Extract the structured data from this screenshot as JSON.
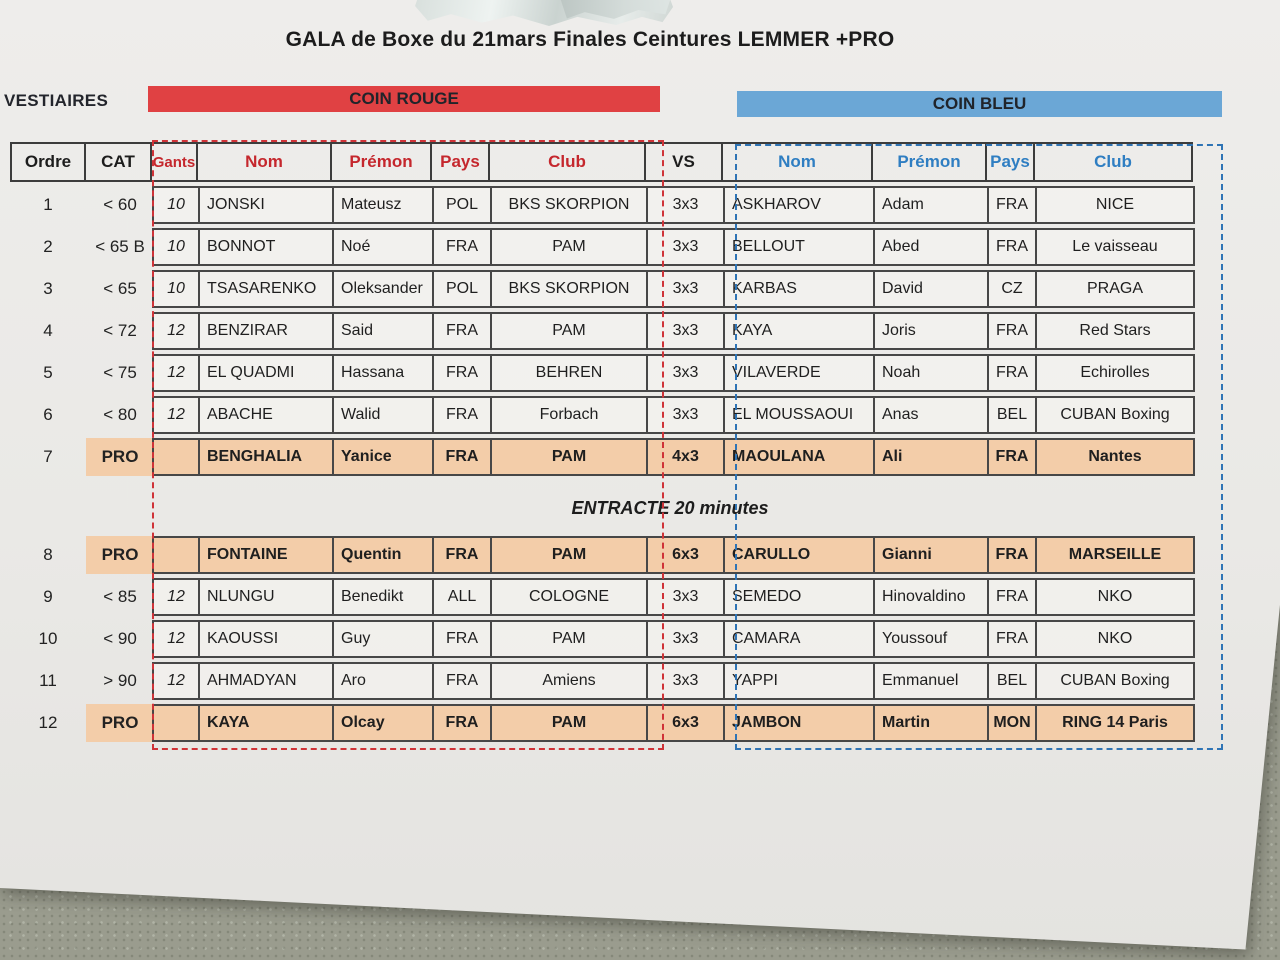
{
  "title": "GALA de Boxe du 21mars Finales Ceintures LEMMER +PRO",
  "vestiaires_label": "VESTIAIRES",
  "banners": {
    "red_label": "COIN ROUGE",
    "blue_label": "COIN BLEU"
  },
  "colors": {
    "red_banner": "#e04143",
    "blue_banner": "#6ba7d6",
    "red_text": "#c5272d",
    "blue_text": "#2f7ec2",
    "pro_highlight": "#f3cda9"
  },
  "table": {
    "headers": {
      "ordre": "Ordre",
      "cat": "CAT",
      "gants": "Gants",
      "nom": "Nom",
      "premon": "Prémon",
      "pays": "Pays",
      "club": "Club",
      "vs": "VS"
    },
    "entracte_label": "ENTRACTE 20 minutes",
    "rows": [
      {
        "ordre": "1",
        "cat": "< 60",
        "gants": "10",
        "pro": false,
        "red": {
          "nom": "JONSKI",
          "premon": "Mateusz",
          "pays": "POL",
          "club": "BKS SKORPION"
        },
        "vs": "3x3",
        "blue": {
          "nom": "ASKHAROV",
          "premon": "Adam",
          "pays": "FRA",
          "club": "NICE"
        }
      },
      {
        "ordre": "2",
        "cat": "< 65 B",
        "gants": "10",
        "pro": false,
        "red": {
          "nom": "BONNOT",
          "premon": "Noé",
          "pays": "FRA",
          "club": "PAM"
        },
        "vs": "3x3",
        "blue": {
          "nom": "BELLOUT",
          "premon": "Abed",
          "pays": "FRA",
          "club": "Le vaisseau"
        }
      },
      {
        "ordre": "3",
        "cat": "< 65",
        "gants": "10",
        "pro": false,
        "red": {
          "nom": "TSASARENKO",
          "premon": "Oleksander",
          "pays": "POL",
          "club": "BKS SKORPION"
        },
        "vs": "3x3",
        "blue": {
          "nom": "KARBAS",
          "premon": "David",
          "pays": "CZ",
          "club": "PRAGA"
        }
      },
      {
        "ordre": "4",
        "cat": "< 72",
        "gants": "12",
        "pro": false,
        "red": {
          "nom": "BENZIRAR",
          "premon": "Said",
          "pays": "FRA",
          "club": "PAM"
        },
        "vs": "3x3",
        "blue": {
          "nom": "KAYA",
          "premon": "Joris",
          "pays": "FRA",
          "club": "Red Stars"
        }
      },
      {
        "ordre": "5",
        "cat": "< 75",
        "gants": "12",
        "pro": false,
        "red": {
          "nom": "EL QUADMI",
          "premon": "Hassana",
          "pays": "FRA",
          "club": "BEHREN"
        },
        "vs": "3x3",
        "blue": {
          "nom": "VILAVERDE",
          "premon": "Noah",
          "pays": "FRA",
          "club": "Echirolles"
        }
      },
      {
        "ordre": "6",
        "cat": "< 80",
        "gants": "12",
        "pro": false,
        "red": {
          "nom": "ABACHE",
          "premon": "Walid",
          "pays": "FRA",
          "club": "Forbach"
        },
        "vs": "3x3",
        "blue": {
          "nom": "EL MOUSSAOUI",
          "premon": "Anas",
          "pays": "BEL",
          "club": "CUBAN Boxing"
        }
      },
      {
        "ordre": "7",
        "cat": "PRO",
        "gants": "",
        "pro": true,
        "red": {
          "nom": "BENGHALIA",
          "premon": "Yanice",
          "pays": "FRA",
          "club": "PAM"
        },
        "vs": "4x3",
        "blue": {
          "nom": "MAOULANA",
          "premon": "Ali",
          "pays": "FRA",
          "club": "Nantes"
        }
      },
      {
        "ordre": "8",
        "cat": "PRO",
        "gants": "",
        "pro": true,
        "red": {
          "nom": "FONTAINE",
          "premon": "Quentin",
          "pays": "FRA",
          "club": "PAM"
        },
        "vs": "6x3",
        "blue": {
          "nom": "CARULLO",
          "premon": "Gianni",
          "pays": "FRA",
          "club": "MARSEILLE"
        }
      },
      {
        "ordre": "9",
        "cat": "< 85",
        "gants": "12",
        "pro": false,
        "red": {
          "nom": "NLUNGU",
          "premon": "Benedikt",
          "pays": "ALL",
          "club": "COLOGNE"
        },
        "vs": "3x3",
        "blue": {
          "nom": "SEMEDO",
          "premon": "Hinovaldino",
          "pays": "FRA",
          "club": "NKO"
        }
      },
      {
        "ordre": "10",
        "cat": "< 90",
        "gants": "12",
        "pro": false,
        "red": {
          "nom": "KAOUSSI",
          "premon": "Guy",
          "pays": "FRA",
          "club": "PAM"
        },
        "vs": "3x3",
        "blue": {
          "nom": "CAMARA",
          "premon": "Youssouf",
          "pays": "FRA",
          "club": "NKO"
        }
      },
      {
        "ordre": "11",
        "cat": "> 90",
        "gants": "12",
        "pro": false,
        "red": {
          "nom": "AHMADYAN",
          "premon": "Aro",
          "pays": "FRA",
          "club": "Amiens"
        },
        "vs": "3x3",
        "blue": {
          "nom": "YAPPI",
          "premon": "Emmanuel",
          "pays": "BEL",
          "club": "CUBAN Boxing"
        }
      },
      {
        "ordre": "12",
        "cat": "PRO",
        "gants": "",
        "pro": true,
        "red": {
          "nom": "KAYA",
          "premon": "Olcay",
          "pays": "FRA",
          "club": "PAM"
        },
        "vs": "6x3",
        "blue": {
          "nom": "JAMBON",
          "premon": "Martin",
          "pays": "MON",
          "club": "RING 14 Paris"
        }
      }
    ]
  }
}
